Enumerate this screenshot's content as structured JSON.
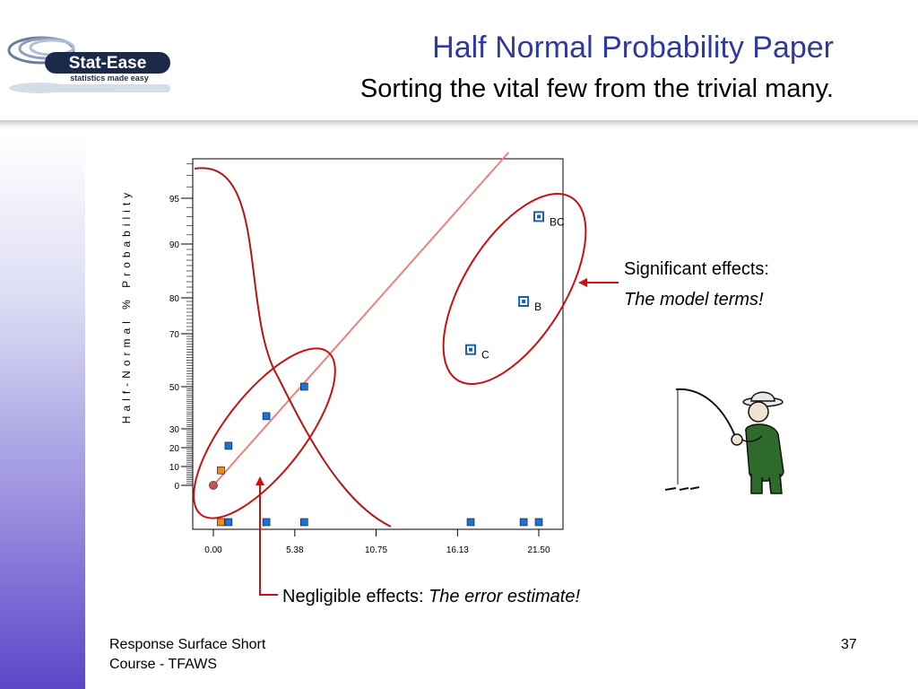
{
  "slide": {
    "title": "Half Normal Probability Paper",
    "subtitle": "Sorting the vital few from the trivial many.",
    "logo_text": "Stat-Ease",
    "logo_tagline": "statistics made easy",
    "logo_reg": "®"
  },
  "annotations": {
    "significant_label": "Significant effects:",
    "significant_note": "The model terms!",
    "negligible_label": "Negligible effects: ",
    "negligible_note": "The error estimate!"
  },
  "footer": {
    "line1": "Response Surface Short",
    "line2": "Course - TFAWS",
    "page_number": "37"
  },
  "colors": {
    "title": "#2e3a9c",
    "sidebar_bottom": "#5a46c8",
    "positive_effect": "#1a73d8",
    "negative_effect": "#f08c10",
    "fit_line": "#f08078",
    "annotation": "#cc1010"
  },
  "chart_data": {
    "type": "scatter",
    "ylabel": "Half-Normal % Probability",
    "xlabel": "",
    "xlim": [
      0,
      24.2
    ],
    "x_ticks": [
      {
        "value": 0,
        "label": "0.00"
      },
      {
        "value": 5.38,
        "label": "5.38"
      },
      {
        "value": 10.75,
        "label": "10.75"
      },
      {
        "value": 16.13,
        "label": "16.13"
      },
      {
        "value": 21.5,
        "label": "21.50"
      }
    ],
    "y_ticks": [
      {
        "value": 0,
        "label": "0"
      },
      {
        "value": 10,
        "label": "10"
      },
      {
        "value": 20,
        "label": "20"
      },
      {
        "value": 30,
        "label": "30"
      },
      {
        "value": 50,
        "label": "50"
      },
      {
        "value": 70,
        "label": "70"
      },
      {
        "value": 80,
        "label": "80"
      },
      {
        "value": 90,
        "label": "90"
      },
      {
        "value": 95,
        "label": "95"
      }
    ],
    "scale": "half-normal probability",
    "points": [
      {
        "x": 0.0,
        "y": 0,
        "label": "",
        "sign": "origin"
      },
      {
        "x": 0.5,
        "y": 8,
        "label": "",
        "sign": "negative"
      },
      {
        "x": 1.0,
        "y": 21,
        "label": "",
        "sign": "positive"
      },
      {
        "x": 3.5,
        "y": 36,
        "label": "",
        "sign": "positive"
      },
      {
        "x": 6.0,
        "y": 50,
        "label": "",
        "sign": "positive"
      },
      {
        "x": 17.0,
        "y": 64,
        "label": "C",
        "sign": "positive"
      },
      {
        "x": 20.5,
        "y": 79,
        "label": "B",
        "sign": "positive"
      },
      {
        "x": 21.5,
        "y": 93,
        "label": "BC",
        "sign": "positive"
      }
    ],
    "rug": [
      {
        "x": 0.5,
        "sign": "negative"
      },
      {
        "x": 1.0,
        "sign": "positive"
      },
      {
        "x": 3.5,
        "sign": "positive"
      },
      {
        "x": 6.0,
        "sign": "positive"
      },
      {
        "x": 17.0,
        "sign": "positive"
      },
      {
        "x": 20.5,
        "sign": "positive"
      },
      {
        "x": 21.5,
        "sign": "positive"
      }
    ],
    "fit_line": {
      "from": {
        "x": 0,
        "y": 0
      },
      "to": {
        "x": 19.5,
        "y": 99
      }
    },
    "grid": false,
    "legend": "none"
  }
}
